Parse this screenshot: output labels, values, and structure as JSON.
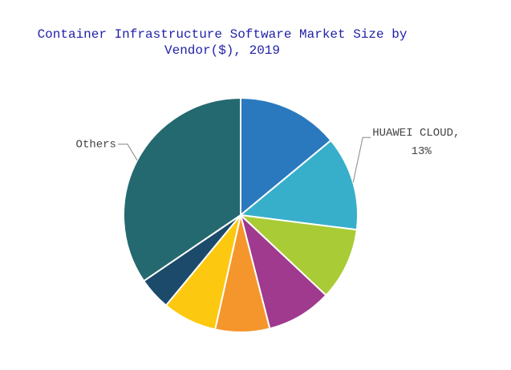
{
  "chart_data": {
    "type": "pie",
    "title": "Container Infrastructure Software Market Size by Vendor($), 2019",
    "categories": [
      null,
      "HUAWEI CLOUD,",
      null,
      null,
      null,
      null,
      null,
      "Others"
    ],
    "values": [
      14,
      13,
      10,
      9,
      7.5,
      7.5,
      4.5,
      34.5
    ],
    "value_labels": [
      null,
      "13%",
      null,
      null,
      null,
      null,
      null,
      null
    ],
    "colors": [
      "#2a79be",
      "#37afca",
      "#a9cb35",
      "#9f3a8e",
      "#f4962b",
      "#fdc810",
      "#1c4a6b",
      "#24696f"
    ],
    "start_angle": 0,
    "direction": "clockwise"
  }
}
